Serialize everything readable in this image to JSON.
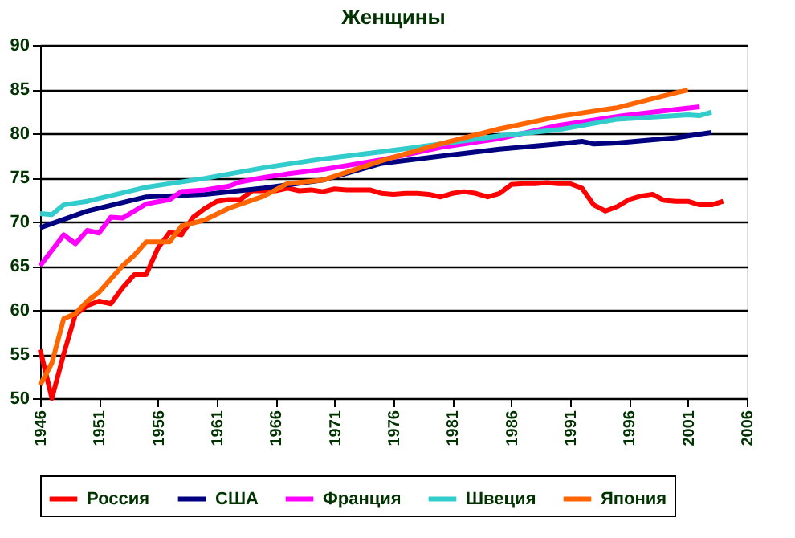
{
  "chart_data": {
    "type": "line",
    "title": "Женщины",
    "xlim": [
      1946,
      2006
    ],
    "xticks": [
      1946,
      1951,
      1956,
      1961,
      1966,
      1971,
      1976,
      1981,
      1986,
      1991,
      1996,
      2001,
      2006
    ],
    "ylim": [
      50,
      90
    ],
    "yticks": [
      50,
      55,
      60,
      65,
      70,
      75,
      80,
      85,
      90
    ],
    "grid": "y",
    "legend": "bottom",
    "line_style": "solid",
    "marker": "none",
    "series": [
      {
        "name": "Россия",
        "color": "#ff0000",
        "x": [
          1946,
          1947,
          1948,
          1949,
          1950,
          1951,
          1952,
          1953,
          1954,
          1955,
          1956,
          1957,
          1958,
          1959,
          1960,
          1961,
          1962,
          1963,
          1964,
          1965,
          1966,
          1967,
          1968,
          1969,
          1970,
          1971,
          1972,
          1973,
          1974,
          1975,
          1976,
          1977,
          1978,
          1979,
          1980,
          1981,
          1982,
          1983,
          1984,
          1985,
          1986,
          1987,
          1988,
          1989,
          1990,
          1991,
          1992,
          1993,
          1994,
          1995,
          1996,
          1997,
          1998,
          1999,
          2000,
          2001,
          2002,
          2003,
          2004
        ],
        "values": [
          55.5,
          50,
          55,
          59.5,
          60.5,
          61,
          60.7,
          62.5,
          64,
          64,
          67,
          68.8,
          68.5,
          70.5,
          71.5,
          72.3,
          72.5,
          72.5,
          73.5,
          73.5,
          73.5,
          73.8,
          73.5,
          73.6,
          73.4,
          73.7,
          73.6,
          73.6,
          73.6,
          73.2,
          73.1,
          73.2,
          73.2,
          73.1,
          72.8,
          73.2,
          73.4,
          73.2,
          72.8,
          73.2,
          74.2,
          74.3,
          74.3,
          74.4,
          74.3,
          74.3,
          73.8,
          71.9,
          71.2,
          71.7,
          72.5,
          72.9,
          73.1,
          72.4,
          72.3,
          72.3,
          71.9,
          71.9,
          72.3
        ]
      },
      {
        "name": "США",
        "color": "#000080",
        "x": [
          1946,
          1950,
          1955,
          1960,
          1965,
          1970,
          1975,
          1980,
          1985,
          1990,
          1992,
          1993,
          1995,
          2000,
          2003
        ],
        "values": [
          69.3,
          71.2,
          72.8,
          73.1,
          73.8,
          74.7,
          76.6,
          77.4,
          78.2,
          78.8,
          79.1,
          78.8,
          78.9,
          79.5,
          80.1
        ]
      },
      {
        "name": "Франция",
        "color": "#ff00ff",
        "x": [
          1946,
          1948,
          1949,
          1950,
          1951,
          1952,
          1953,
          1955,
          1957,
          1958,
          1960,
          1962,
          1963,
          1965,
          1967,
          1970,
          1975,
          1980,
          1985,
          1990,
          1995,
          2000,
          2002
        ],
        "values": [
          65,
          68.5,
          67.5,
          69,
          68.7,
          70.5,
          70.4,
          72,
          72.5,
          73.4,
          73.6,
          74,
          74.5,
          75,
          75.4,
          75.9,
          77,
          78.4,
          79.4,
          80.9,
          81.9,
          82.7,
          83
        ]
      },
      {
        "name": "Швеция",
        "color": "#33cccc",
        "x": [
          1946,
          1947,
          1948,
          1950,
          1955,
          1960,
          1965,
          1970,
          1975,
          1980,
          1985,
          1990,
          1995,
          2000,
          2001,
          2002,
          2003
        ],
        "values": [
          70.9,
          70.8,
          71.9,
          72.3,
          73.9,
          74.9,
          76.1,
          77.1,
          77.9,
          78.8,
          79.7,
          80.4,
          81.6,
          82,
          82.1,
          82,
          82.4
        ]
      },
      {
        "name": "Япония",
        "color": "#ff6600",
        "x": [
          1946,
          1947,
          1948,
          1949,
          1950,
          1951,
          1953,
          1954,
          1955,
          1956,
          1957,
          1958,
          1960,
          1962,
          1965,
          1967,
          1970,
          1975,
          1980,
          1985,
          1990,
          1995,
          2000,
          2001
        ],
        "values": [
          51.5,
          54,
          59,
          59.6,
          61,
          62,
          65,
          66.2,
          67.7,
          67.7,
          67.7,
          69.5,
          70.2,
          71.5,
          72.9,
          74.3,
          74.7,
          76.9,
          78.8,
          80.5,
          81.9,
          82.9,
          84.6,
          84.9
        ]
      }
    ]
  }
}
